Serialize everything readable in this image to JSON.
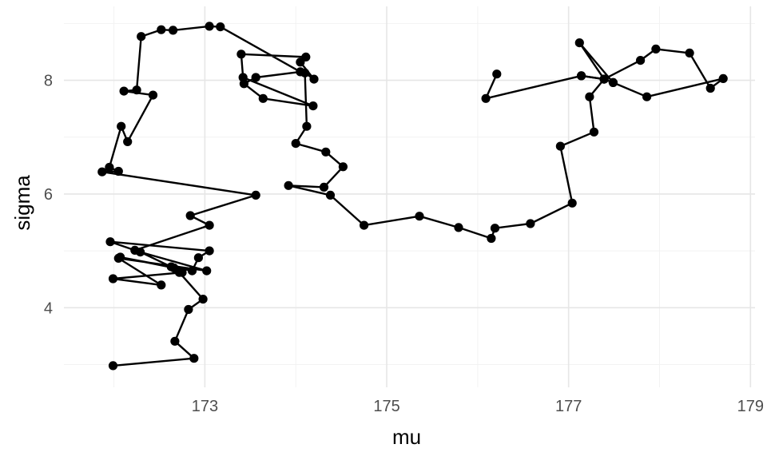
{
  "chart_data": {
    "type": "line",
    "title": "",
    "xlabel": "mu",
    "ylabel": "sigma",
    "xlim": [
      171.45,
      179.05
    ],
    "ylim": [
      2.6,
      9.3
    ],
    "x_major_ticks": [
      173,
      175,
      177,
      179
    ],
    "x_minor_ticks": [
      172,
      174,
      176,
      178
    ],
    "y_major_ticks": [
      4,
      6,
      8
    ],
    "y_minor_ticks": [
      3,
      5,
      7,
      9
    ],
    "grid": true,
    "point_color": "#000000",
    "line_color": "#000000",
    "series": [
      {
        "x": [
          176.21,
          176.09,
          177.14,
          177.39,
          177.49,
          177.12,
          177.39,
          177.23,
          177.28,
          176.91,
          177.04,
          176.58,
          176.19,
          176.15,
          175.79,
          175.36,
          174.75,
          174.38,
          173.92,
          174.31,
          174.52,
          174.33,
          174.0,
          174.12,
          174.1,
          174.2,
          174.05,
          174.11,
          173.4,
          173.42,
          174.19,
          173.64,
          173.43,
          173.56,
          174.05,
          173.17,
          173.05,
          172.65,
          172.52,
          172.3,
          172.25,
          172.11,
          172.43,
          172.15,
          172.08,
          171.95,
          172.05,
          171.87,
          173.56,
          172.84,
          173.05,
          172.23,
          171.96,
          173.05,
          172.93,
          172.86,
          172.07,
          172.66,
          172.75,
          171.99,
          172.52,
          172.05,
          173.02,
          172.29,
          172.63,
          172.72,
          172.98,
          172.82,
          172.67,
          172.88,
          171.99
        ],
        "y": [
          8.11,
          7.68,
          8.08,
          8.02,
          7.96,
          8.66,
          8.02,
          7.71,
          7.09,
          6.84,
          5.84,
          5.48,
          5.4,
          5.22,
          5.41,
          5.61,
          5.45,
          5.98,
          6.15,
          6.12,
          6.48,
          6.74,
          6.89,
          7.19,
          8.13,
          8.02,
          8.32,
          8.41,
          8.46,
          8.05,
          7.55,
          7.68,
          7.94,
          8.05,
          8.15,
          8.94,
          8.95,
          8.88,
          8.89,
          8.77,
          7.83,
          7.81,
          7.74,
          6.92,
          7.19,
          6.47,
          6.4,
          6.39,
          5.98,
          5.62,
          5.45,
          5.01,
          5.16,
          5.0,
          4.88,
          4.65,
          4.89,
          4.7,
          4.62,
          4.51,
          4.4,
          4.87,
          4.65,
          4.98,
          4.72,
          4.62,
          4.15,
          3.97,
          3.41,
          3.11,
          2.98
        ]
      },
      {
        "x": [
          177.14,
          177.39,
          177.79,
          177.96,
          178.33,
          178.56,
          178.7,
          177.86,
          177.49
        ],
        "y": [
          8.08,
          8.02,
          8.35,
          8.55,
          8.48,
          7.86,
          8.03,
          7.71,
          7.96
        ]
      }
    ]
  }
}
